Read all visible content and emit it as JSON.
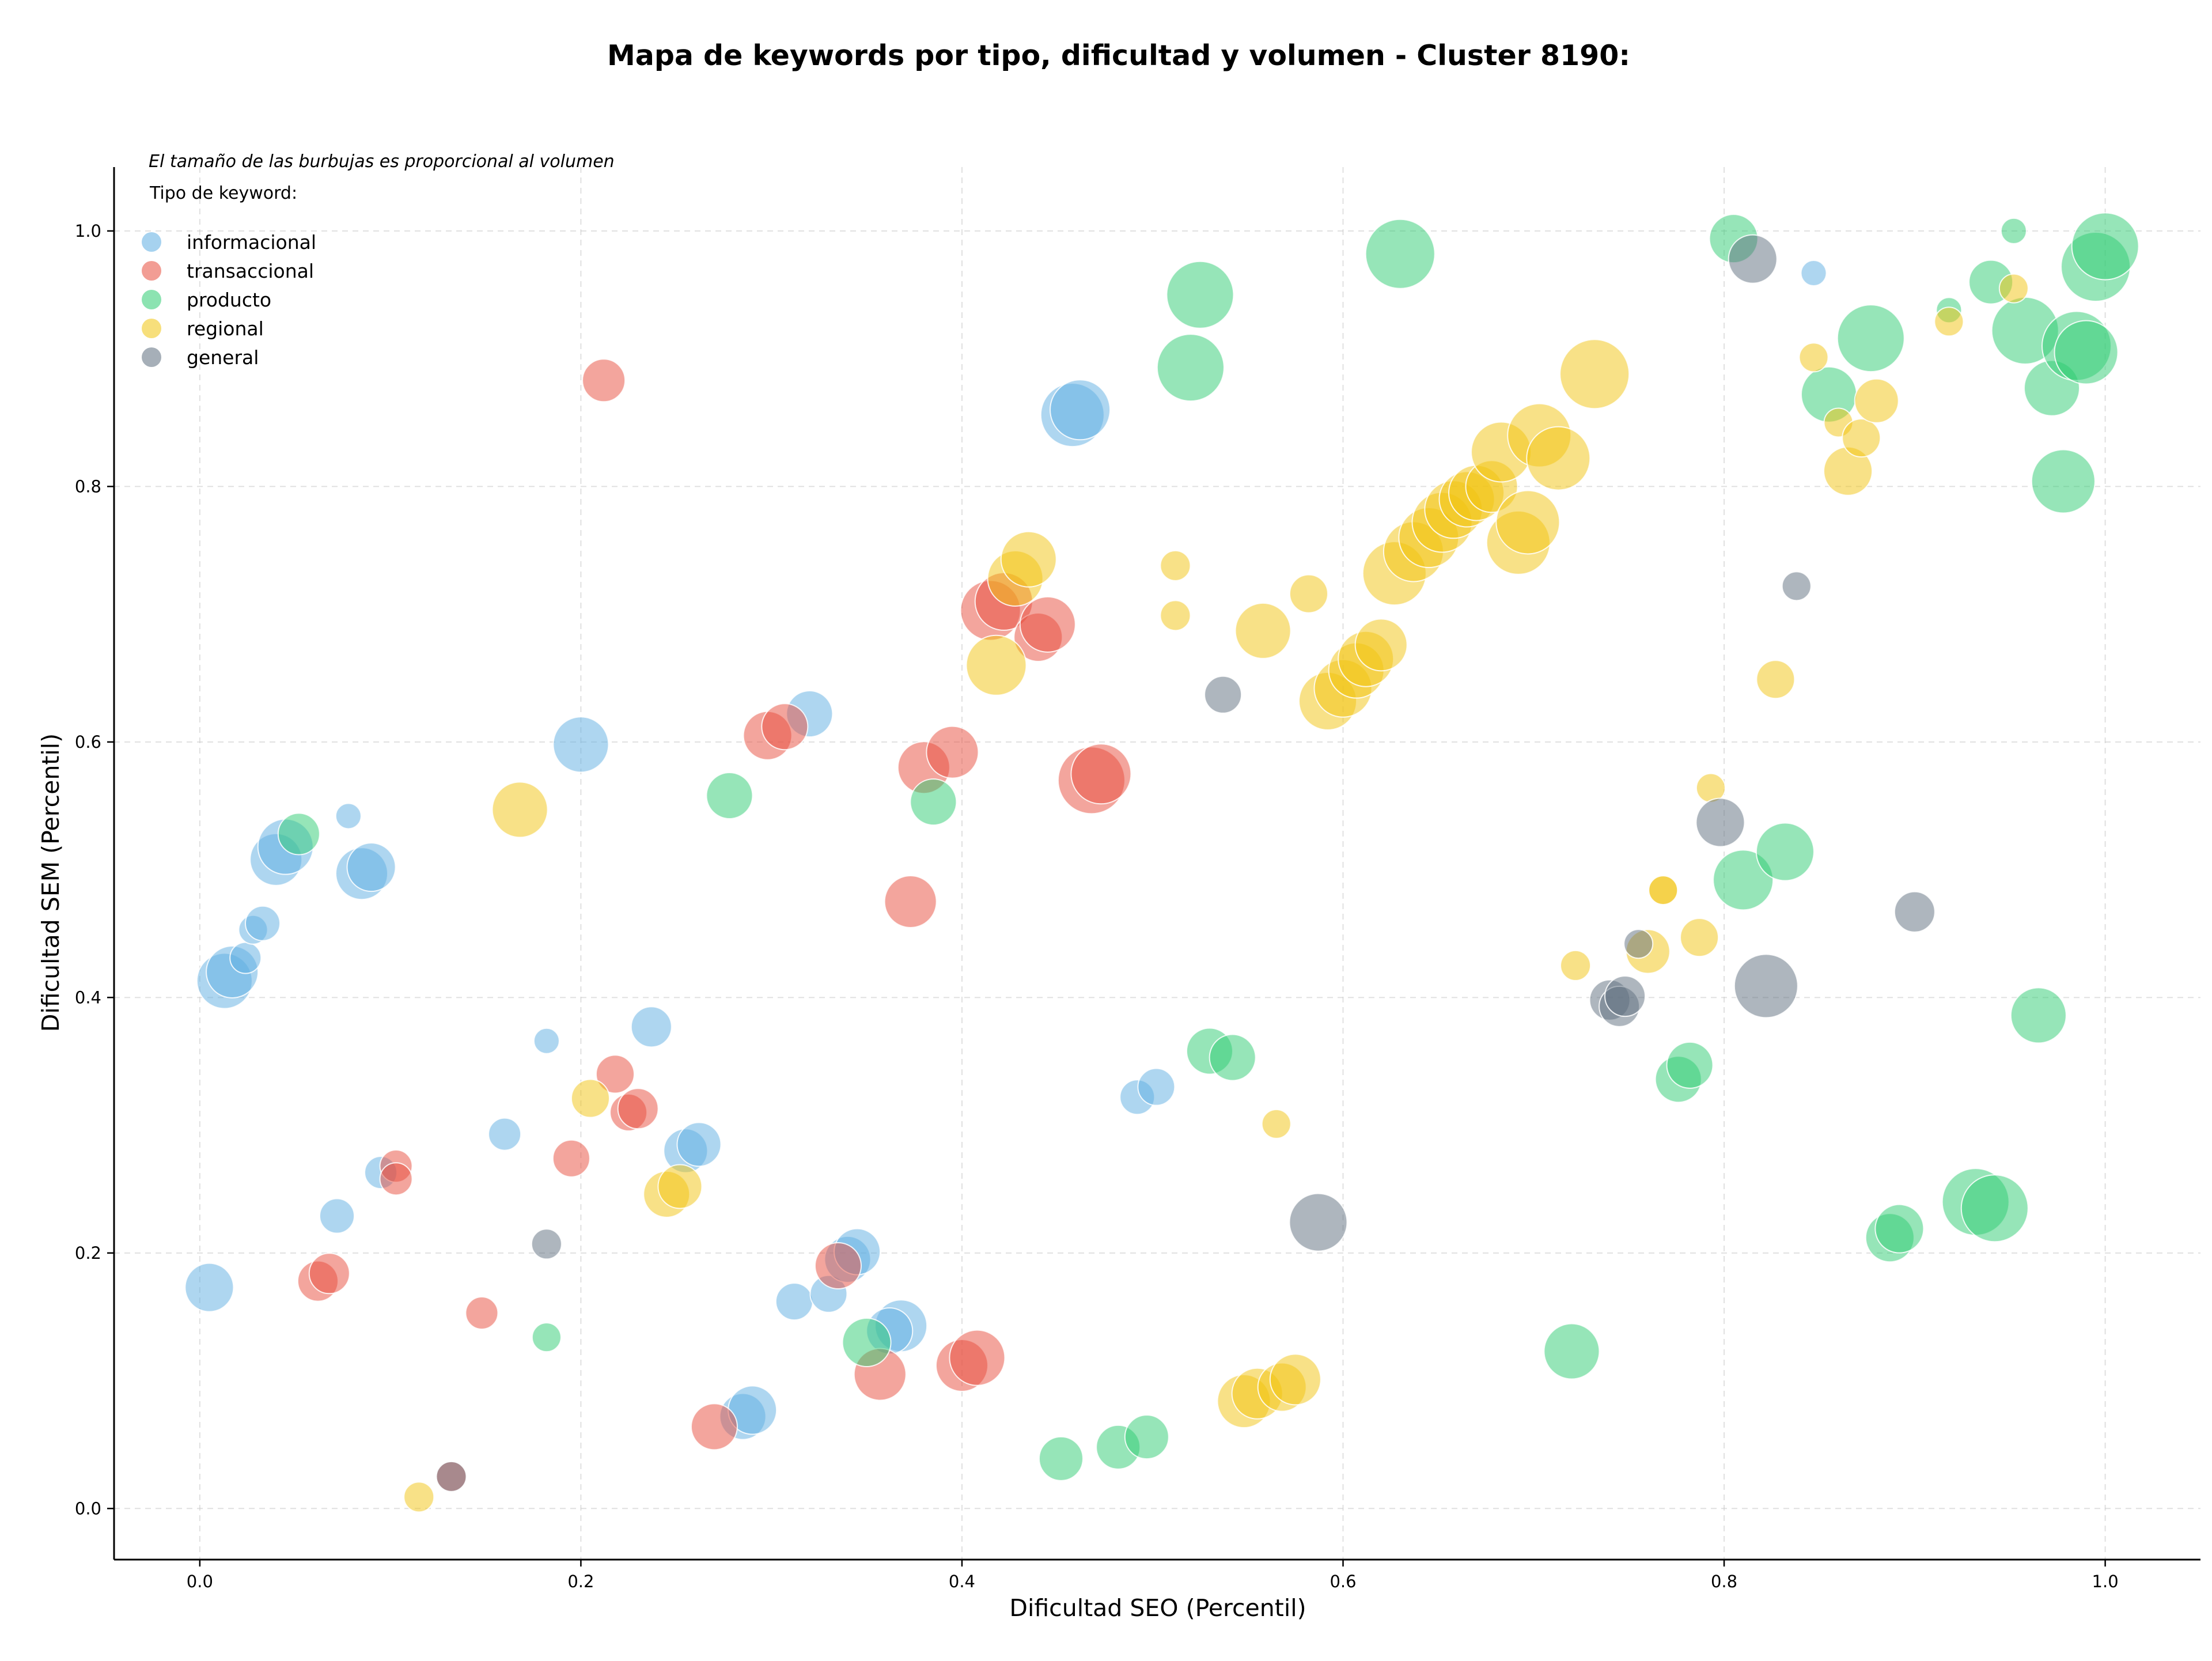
{
  "chart_data": {
    "type": "scatter",
    "title": "Mapa de keywords por tipo, dificultad y volumen - Cluster 8190:",
    "xlabel": "Dificultad SEO (Percentil)",
    "ylabel": "Dificultad SEM (Percentil)",
    "xlim": [
      -0.045,
      1.05
    ],
    "ylim": [
      -0.04,
      1.05
    ],
    "xticks": [
      0.0,
      0.2,
      0.4,
      0.6,
      0.8,
      1.0
    ],
    "xtick_labels": [
      "0.0",
      "0.2",
      "0.4",
      "0.6",
      "0.8",
      "1.0"
    ],
    "yticks": [
      0.0,
      0.2,
      0.4,
      0.6,
      0.8,
      1.0
    ],
    "ytick_labels": [
      "0.0",
      "0.2",
      "0.4",
      "0.6",
      "0.8",
      "1.0"
    ],
    "grid": true,
    "legend_position": "top-left",
    "legend_title": "Tipo de keyword:",
    "annotation": "El tamaño de las burbujas es proporcional al volumen",
    "series": [
      {
        "name": "informacional",
        "color": "#5dade2",
        "points": [
          [
            0.005,
            0.173,
            42
          ],
          [
            0.072,
            0.229,
            30
          ],
          [
            0.095,
            0.263,
            28
          ],
          [
            0.013,
            0.413,
            48
          ],
          [
            0.017,
            0.42,
            45
          ],
          [
            0.024,
            0.431,
            27
          ],
          [
            0.028,
            0.453,
            25
          ],
          [
            0.033,
            0.458,
            30
          ],
          [
            0.04,
            0.508,
            45
          ],
          [
            0.045,
            0.518,
            48
          ],
          [
            0.078,
            0.542,
            22
          ],
          [
            0.085,
            0.497,
            45
          ],
          [
            0.09,
            0.502,
            42
          ],
          [
            0.16,
            0.293,
            28
          ],
          [
            0.182,
            0.366,
            22
          ],
          [
            0.2,
            0.598,
            48
          ],
          [
            0.237,
            0.377,
            35
          ],
          [
            0.255,
            0.28,
            38
          ],
          [
            0.262,
            0.285,
            38
          ],
          [
            0.312,
            0.162,
            32
          ],
          [
            0.33,
            0.168,
            32
          ],
          [
            0.32,
            0.622,
            40
          ],
          [
            0.34,
            0.195,
            40
          ],
          [
            0.345,
            0.201,
            40
          ],
          [
            0.368,
            0.143,
            45
          ],
          [
            0.362,
            0.139,
            40
          ],
          [
            0.285,
            0.072,
            40
          ],
          [
            0.29,
            0.077,
            42
          ],
          [
            0.458,
            0.856,
            55
          ],
          [
            0.462,
            0.86,
            52
          ],
          [
            0.492,
            0.322,
            30
          ],
          [
            0.502,
            0.33,
            32
          ],
          [
            0.847,
            0.967,
            22
          ]
        ]
      },
      {
        "name": "transaccional",
        "color": "#e74c3c",
        "points": [
          [
            0.062,
            0.178,
            35
          ],
          [
            0.068,
            0.184,
            35
          ],
          [
            0.103,
            0.268,
            28
          ],
          [
            0.103,
            0.258,
            28
          ],
          [
            0.148,
            0.153,
            28
          ],
          [
            0.132,
            0.025,
            26
          ],
          [
            0.195,
            0.274,
            32
          ],
          [
            0.212,
            0.883,
            37
          ],
          [
            0.218,
            0.34,
            33
          ],
          [
            0.225,
            0.31,
            32
          ],
          [
            0.23,
            0.313,
            35
          ],
          [
            0.27,
            0.064,
            40
          ],
          [
            0.298,
            0.605,
            42
          ],
          [
            0.307,
            0.612,
            40
          ],
          [
            0.335,
            0.19,
            40
          ],
          [
            0.357,
            0.105,
            45
          ],
          [
            0.373,
            0.475,
            45
          ],
          [
            0.38,
            0.58,
            45
          ],
          [
            0.395,
            0.592,
            45
          ],
          [
            0.4,
            0.112,
            45
          ],
          [
            0.408,
            0.118,
            48
          ],
          [
            0.415,
            0.703,
            52
          ],
          [
            0.422,
            0.71,
            50
          ],
          [
            0.44,
            0.682,
            42
          ],
          [
            0.445,
            0.692,
            48
          ],
          [
            0.468,
            0.57,
            58
          ],
          [
            0.473,
            0.575,
            52
          ]
        ]
      },
      {
        "name": "producto",
        "color": "#2ecc71",
        "points": [
          [
            0.052,
            0.528,
            36
          ],
          [
            0.182,
            0.134,
            25
          ],
          [
            0.278,
            0.558,
            40
          ],
          [
            0.35,
            0.13,
            42
          ],
          [
            0.385,
            0.553,
            40
          ],
          [
            0.452,
            0.039,
            38
          ],
          [
            0.482,
            0.048,
            38
          ],
          [
            0.497,
            0.056,
            38
          ],
          [
            0.52,
            0.893,
            58
          ],
          [
            0.525,
            0.95,
            58
          ],
          [
            0.53,
            0.358,
            40
          ],
          [
            0.542,
            0.353,
            40
          ],
          [
            0.63,
            0.982,
            60
          ],
          [
            0.72,
            0.123,
            48
          ],
          [
            0.776,
            0.336,
            40
          ],
          [
            0.782,
            0.347,
            40
          ],
          [
            0.805,
            0.994,
            42
          ],
          [
            0.81,
            0.492,
            52
          ],
          [
            0.832,
            0.514,
            50
          ],
          [
            0.855,
            0.872,
            48
          ],
          [
            0.877,
            0.916,
            58
          ],
          [
            0.887,
            0.212,
            42
          ],
          [
            0.892,
            0.219,
            42
          ],
          [
            0.918,
            0.938,
            22
          ],
          [
            0.932,
            0.24,
            58
          ],
          [
            0.94,
            0.96,
            38
          ],
          [
            0.942,
            0.235,
            58
          ],
          [
            0.952,
            1.0,
            22
          ],
          [
            0.958,
            0.922,
            58
          ],
          [
            0.965,
            0.386,
            48
          ],
          [
            0.972,
            0.877,
            48
          ],
          [
            0.978,
            0.804,
            55
          ],
          [
            0.985,
            0.91,
            60
          ],
          [
            0.99,
            0.905,
            55
          ],
          [
            0.995,
            0.972,
            60
          ],
          [
            1.0,
            0.988,
            58
          ]
        ]
      },
      {
        "name": "regional",
        "color": "#f1c40f",
        "points": [
          [
            0.115,
            0.009,
            26
          ],
          [
            0.168,
            0.547,
            48
          ],
          [
            0.205,
            0.321,
            33
          ],
          [
            0.245,
            0.246,
            40
          ],
          [
            0.252,
            0.252,
            38
          ],
          [
            0.418,
            0.66,
            52
          ],
          [
            0.428,
            0.728,
            48
          ],
          [
            0.435,
            0.743,
            48
          ],
          [
            0.512,
            0.738,
            26
          ],
          [
            0.512,
            0.699,
            26
          ],
          [
            0.548,
            0.084,
            46
          ],
          [
            0.555,
            0.09,
            44
          ],
          [
            0.558,
            0.687,
            48
          ],
          [
            0.565,
            0.301,
            25
          ],
          [
            0.568,
            0.095,
            42
          ],
          [
            0.575,
            0.101,
            44
          ],
          [
            0.582,
            0.716,
            33
          ],
          [
            0.592,
            0.632,
            50
          ],
          [
            0.6,
            0.642,
            50
          ],
          [
            0.607,
            0.656,
            48
          ],
          [
            0.612,
            0.665,
            48
          ],
          [
            0.62,
            0.676,
            45
          ],
          [
            0.627,
            0.732,
            55
          ],
          [
            0.637,
            0.749,
            52
          ],
          [
            0.645,
            0.76,
            52
          ],
          [
            0.652,
            0.772,
            52
          ],
          [
            0.658,
            0.782,
            50
          ],
          [
            0.665,
            0.79,
            48
          ],
          [
            0.67,
            0.795,
            48
          ],
          [
            0.678,
            0.8,
            45
          ],
          [
            0.683,
            0.827,
            52
          ],
          [
            0.692,
            0.756,
            55
          ],
          [
            0.697,
            0.772,
            55
          ],
          [
            0.703,
            0.84,
            55
          ],
          [
            0.713,
            0.822,
            55
          ],
          [
            0.722,
            0.425,
            26
          ],
          [
            0.732,
            0.888,
            60
          ],
          [
            0.76,
            0.436,
            38
          ],
          [
            0.768,
            0.484,
            25
          ],
          [
            0.768,
            0.484,
            25
          ],
          [
            0.787,
            0.447,
            33
          ],
          [
            0.793,
            0.564,
            25
          ],
          [
            0.827,
            0.649,
            33
          ],
          [
            0.847,
            0.901,
            25
          ],
          [
            0.86,
            0.85,
            25
          ],
          [
            0.865,
            0.812,
            42
          ],
          [
            0.872,
            0.838,
            33
          ],
          [
            0.88,
            0.867,
            38
          ],
          [
            0.918,
            0.929,
            25
          ],
          [
            0.952,
            0.955,
            25
          ]
        ]
      },
      {
        "name": "general",
        "color": "#5d6d7e",
        "points": [
          [
            0.132,
            0.025,
            26
          ],
          [
            0.182,
            0.207,
            26
          ],
          [
            0.537,
            0.637,
            32
          ],
          [
            0.587,
            0.224,
            50
          ],
          [
            0.74,
            0.398,
            35
          ],
          [
            0.745,
            0.393,
            35
          ],
          [
            0.748,
            0.401,
            35
          ],
          [
            0.755,
            0.442,
            25
          ],
          [
            0.798,
            0.537,
            42
          ],
          [
            0.815,
            0.978,
            42
          ],
          [
            0.822,
            0.409,
            55
          ],
          [
            0.838,
            0.722,
            25
          ],
          [
            0.9,
            0.467,
            35
          ]
        ]
      }
    ]
  }
}
